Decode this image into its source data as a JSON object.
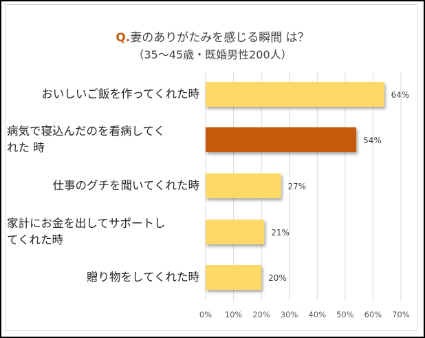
{
  "chart_data": {
    "type": "bar",
    "orientation": "horizontal",
    "title": "Q.妻のありがたみを感じる瞬間 は？",
    "title_prefix": "Q.",
    "title_main": "妻のありがたみを感じる瞬間 は？",
    "subtitle": "（35～45歳・既婚男性200人）",
    "categories": [
      "おいしいご飯を作ってくれた時",
      "病気で寝込んだのを看病してくれた時",
      "仕事のグチを聞いてくれた時",
      "家計にお金を出してサポートしてくれた時",
      "贈り物をしてくれた時"
    ],
    "category_lines": [
      [
        "おいしいご飯を作ってくれた時"
      ],
      [
        "病気で寝込んだのを看病してく",
        "れた 時"
      ],
      [
        "仕事のグチを聞いてくれた時"
      ],
      [
        "家計にお金を出してサポートし",
        "てくれた時"
      ],
      [
        "贈り物をしてくれた時"
      ]
    ],
    "values": [
      64,
      54,
      27,
      21,
      20
    ],
    "data_labels": [
      "64%",
      "54%",
      "27%",
      "21%",
      "20%"
    ],
    "bar_colors": [
      "#FFD966",
      "#C55A11",
      "#FFD966",
      "#FFD966",
      "#FFD966"
    ],
    "xlim": [
      0,
      70
    ],
    "xticks": [
      "0%",
      "10%",
      "20%",
      "30%",
      "40%",
      "50%",
      "60%",
      "70%"
    ],
    "grid": true,
    "legend": "none"
  }
}
